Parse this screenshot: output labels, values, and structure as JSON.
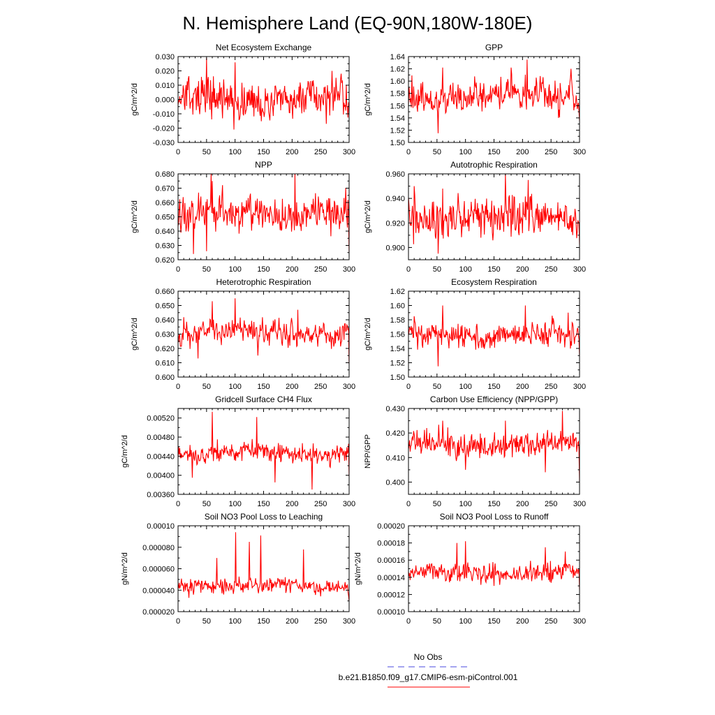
{
  "title": "N. Hemisphere Land (EQ-90N,180W-180E)",
  "legend": [
    {
      "label": "No Obs",
      "color": "#4a4adf",
      "style": "dashed"
    },
    {
      "label": "b.e21.B1850.f09_g17.CMIP6-esm-piControl.001",
      "color": "#ff0000",
      "style": "solid"
    }
  ],
  "chart_data": [
    {
      "type": "line",
      "title": "Net Ecosystem Exchange",
      "ylabel": "gC/m^2/d",
      "xlim": [
        0,
        300
      ],
      "ylim": [
        -0.03,
        0.03
      ],
      "xticks": [
        0,
        50,
        100,
        150,
        200,
        250,
        300
      ],
      "yticks": [
        -0.03,
        -0.02,
        -0.01,
        0.0,
        0.01,
        0.02,
        0.03
      ],
      "ytick_labels": [
        "-0.030",
        "-0.020",
        "-0.010",
        "0.000",
        "0.010",
        "0.020",
        "0.030"
      ],
      "series": {
        "name": "b.e21.B1850.f09_g17.CMIP6-esm-piControl.001",
        "n": 300,
        "mean": 0.0,
        "amp": 0.011,
        "min": -0.021,
        "max": 0.029,
        "peaks": [
          [
            50,
            0.029
          ],
          [
            100,
            0.026
          ],
          [
            98,
            -0.021
          ],
          [
            270,
            0.02
          ],
          [
            285,
            0.014
          ],
          [
            260,
            -0.017
          ]
        ]
      }
    },
    {
      "type": "line",
      "title": "GPP",
      "ylabel": "gC/m^2/d",
      "xlim": [
        0,
        300
      ],
      "ylim": [
        1.5,
        1.64
      ],
      "xticks": [
        0,
        50,
        100,
        150,
        200,
        250,
        300
      ],
      "yticks": [
        1.5,
        1.52,
        1.54,
        1.56,
        1.58,
        1.6,
        1.62,
        1.64
      ],
      "ytick_labels": [
        "1.50",
        "1.52",
        "1.54",
        "1.56",
        "1.58",
        "1.60",
        "1.62",
        "1.64"
      ],
      "series": {
        "name": "b.e21.B1850.f09_g17.CMIP6-esm-piControl.001",
        "n": 300,
        "mean": 1.575,
        "amp": 0.022,
        "min": 1.515,
        "max": 1.635,
        "peaks": [
          [
            52,
            1.515
          ],
          [
            208,
            1.635
          ],
          [
            60,
            1.622
          ],
          [
            285,
            1.62
          ],
          [
            300,
            1.535
          ],
          [
            180,
            1.622
          ]
        ]
      }
    },
    {
      "type": "line",
      "title": "NPP",
      "ylabel": "gC/m^2/d",
      "xlim": [
        0,
        300
      ],
      "ylim": [
        0.62,
        0.68
      ],
      "xticks": [
        0,
        50,
        100,
        150,
        200,
        250,
        300
      ],
      "yticks": [
        0.62,
        0.63,
        0.64,
        0.65,
        0.66,
        0.67,
        0.68
      ],
      "ytick_labels": [
        "0.620",
        "0.630",
        "0.640",
        "0.650",
        "0.660",
        "0.670",
        "0.680"
      ],
      "series": {
        "name": "b.e21.B1850.f09_g17.CMIP6-esm-piControl.001",
        "n": 300,
        "mean": 0.652,
        "amp": 0.01,
        "min": 0.624,
        "max": 0.68,
        "peaks": [
          [
            27,
            0.624
          ],
          [
            58,
            0.68
          ],
          [
            205,
            0.68
          ],
          [
            50,
            0.626
          ],
          [
            300,
            0.625
          ],
          [
            60,
            0.675
          ]
        ]
      }
    },
    {
      "type": "line",
      "title": "Autotrophic Respiration",
      "ylabel": "gC/m^2/d",
      "xlim": [
        0,
        300
      ],
      "ylim": [
        0.89,
        0.96
      ],
      "xticks": [
        0,
        50,
        100,
        150,
        200,
        250,
        300
      ],
      "yticks": [
        0.9,
        0.92,
        0.94,
        0.96
      ],
      "ytick_labels": [
        "0.900",
        "0.920",
        "0.940",
        "0.960"
      ],
      "series": {
        "name": "b.e21.B1850.f09_g17.CMIP6-esm-piControl.001",
        "n": 300,
        "mean": 0.924,
        "amp": 0.013,
        "min": 0.895,
        "max": 0.96,
        "peaks": [
          [
            52,
            0.895
          ],
          [
            170,
            0.96
          ],
          [
            210,
            0.955
          ],
          [
            60,
            0.948
          ],
          [
            300,
            0.902
          ],
          [
            10,
            0.95
          ]
        ]
      }
    },
    {
      "type": "line",
      "title": "Heterotrophic Respiration",
      "ylabel": "gC/m^2/d",
      "xlim": [
        0,
        300
      ],
      "ylim": [
        0.6,
        0.66
      ],
      "xticks": [
        0,
        50,
        100,
        150,
        200,
        250,
        300
      ],
      "yticks": [
        0.6,
        0.61,
        0.62,
        0.63,
        0.64,
        0.65,
        0.66
      ],
      "ytick_labels": [
        "0.600",
        "0.610",
        "0.620",
        "0.630",
        "0.640",
        "0.650",
        "0.660"
      ],
      "series": {
        "name": "b.e21.B1850.f09_g17.CMIP6-esm-piControl.001",
        "n": 300,
        "mean": 0.631,
        "amp": 0.007,
        "min": 0.609,
        "max": 0.655,
        "peaks": [
          [
            100,
            0.655
          ],
          [
            60,
            0.653
          ],
          [
            300,
            0.609
          ],
          [
            35,
            0.613
          ],
          [
            140,
            0.615
          ],
          [
            210,
            0.647
          ]
        ]
      }
    },
    {
      "type": "line",
      "title": "Ecosystem Respiration",
      "ylabel": "gC/m^2/d",
      "xlim": [
        0,
        300
      ],
      "ylim": [
        1.5,
        1.62
      ],
      "xticks": [
        0,
        50,
        100,
        150,
        200,
        250,
        300
      ],
      "yticks": [
        1.5,
        1.52,
        1.54,
        1.56,
        1.58,
        1.6,
        1.62
      ],
      "ytick_labels": [
        "1.50",
        "1.52",
        "1.54",
        "1.56",
        "1.58",
        "1.60",
        "1.62"
      ],
      "series": {
        "name": "b.e21.B1850.f09_g17.CMIP6-esm-piControl.001",
        "n": 300,
        "mean": 1.558,
        "amp": 0.014,
        "min": 1.515,
        "max": 1.6,
        "peaks": [
          [
            52,
            1.515
          ],
          [
            205,
            1.6
          ],
          [
            60,
            1.6
          ],
          [
            300,
            1.53
          ],
          [
            10,
            1.585
          ],
          [
            280,
            1.59
          ]
        ]
      }
    },
    {
      "type": "line",
      "title": "Gridcell Surface CH4 Flux",
      "ylabel": "gC/m^2/d",
      "xlim": [
        0,
        300
      ],
      "ylim": [
        0.0036,
        0.0054
      ],
      "xticks": [
        0,
        50,
        100,
        150,
        200,
        250,
        300
      ],
      "yticks": [
        0.0036,
        0.004,
        0.0044,
        0.0048,
        0.0052
      ],
      "ytick_labels": [
        "0.00360",
        "0.00400",
        "0.00440",
        "0.00480",
        "0.00520"
      ],
      "series": {
        "name": "b.e21.B1850.f09_g17.CMIP6-esm-piControl.001",
        "n": 300,
        "mean": 0.00447,
        "amp": 0.00018,
        "min": 0.0037,
        "max": 0.00533,
        "peaks": [
          [
            60,
            0.00533
          ],
          [
            138,
            0.00522
          ],
          [
            235,
            0.0037
          ],
          [
            170,
            0.00385
          ],
          [
            300,
            0.00397
          ],
          [
            25,
            0.00395
          ]
        ]
      }
    },
    {
      "type": "line",
      "title": "Carbon Use Efficiency (NPP/GPP)",
      "ylabel": "NPP/GPP",
      "xlim": [
        0,
        300
      ],
      "ylim": [
        0.395,
        0.43
      ],
      "xticks": [
        0,
        50,
        100,
        150,
        200,
        250,
        300
      ],
      "yticks": [
        0.4,
        0.41,
        0.42,
        0.43
      ],
      "ytick_labels": [
        "0.400",
        "0.410",
        "0.420",
        "0.430"
      ],
      "series": {
        "name": "b.e21.B1850.f09_g17.CMIP6-esm-piControl.001",
        "n": 300,
        "mean": 0.415,
        "amp": 0.0045,
        "min": 0.4,
        "max": 0.429,
        "peaks": [
          [
            300,
            0.4
          ],
          [
            270,
            0.429
          ],
          [
            170,
            0.425
          ],
          [
            100,
            0.405
          ],
          [
            60,
            0.425
          ],
          [
            240,
            0.404
          ]
        ]
      }
    },
    {
      "type": "line",
      "title": "Soil NO3 Pool Loss to Leaching",
      "ylabel": "gN/m^2/d",
      "xlim": [
        0,
        300
      ],
      "ylim": [
        2e-05,
        0.0001
      ],
      "xticks": [
        0,
        50,
        100,
        150,
        200,
        250,
        300
      ],
      "yticks": [
        2e-05,
        4e-05,
        6e-05,
        8e-05,
        0.0001
      ],
      "ytick_labels": [
        "0.000020",
        "0.000040",
        "0.000060",
        "0.000080",
        "0.00010"
      ],
      "series": {
        "name": "b.e21.B1850.f09_g17.CMIP6-esm-piControl.001",
        "n": 300,
        "mean": 4.4e-05,
        "amp": 6e-06,
        "min": 3e-05,
        "max": 9.4e-05,
        "peaks": [
          [
            101,
            9.4e-05
          ],
          [
            145,
            9.1e-05
          ],
          [
            125,
            8.5e-05
          ],
          [
            220,
            7.8e-05
          ],
          [
            68,
            7e-05
          ],
          [
            300,
            3e-05
          ]
        ]
      }
    },
    {
      "type": "line",
      "title": "Soil NO3 Pool Loss to Runoff",
      "ylabel": "gN/m^2/d",
      "xlim": [
        0,
        300
      ],
      "ylim": [
        0.0001,
        0.0002
      ],
      "xticks": [
        0,
        50,
        100,
        150,
        200,
        250,
        300
      ],
      "yticks": [
        0.0001,
        0.00012,
        0.00014,
        0.00016,
        0.00018,
        0.0002
      ],
      "ytick_labels": [
        "0.00010",
        "0.00012",
        "0.00014",
        "0.00016",
        "0.00018",
        "0.00020"
      ],
      "series": {
        "name": "b.e21.B1850.f09_g17.CMIP6-esm-piControl.001",
        "n": 300,
        "mean": 0.000145,
        "amp": 9e-06,
        "min": 0.000125,
        "max": 0.000182,
        "peaks": [
          [
            100,
            0.000182
          ],
          [
            85,
            0.00018
          ],
          [
            240,
            0.000175
          ],
          [
            275,
            0.00017
          ],
          [
            300,
            0.000125
          ],
          [
            150,
            0.00013
          ]
        ]
      }
    }
  ]
}
